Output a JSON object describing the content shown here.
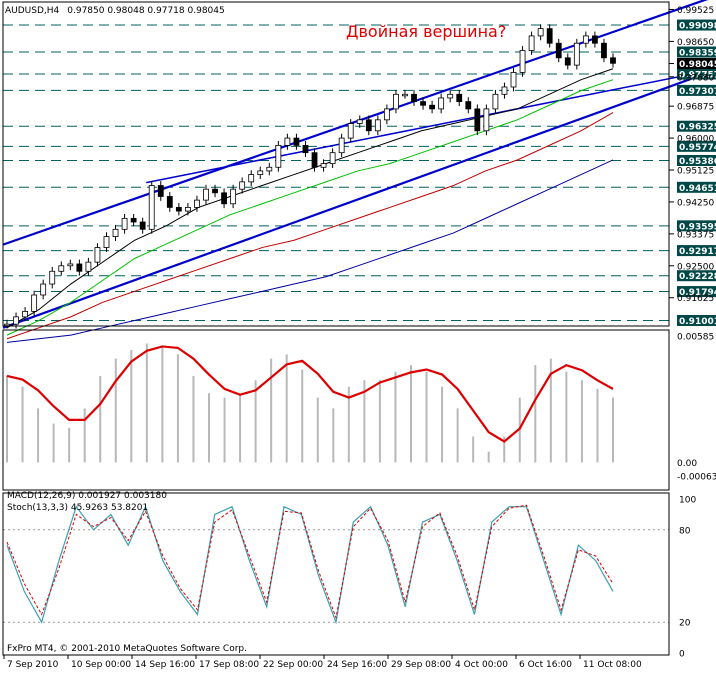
{
  "header": {
    "symbol": "AUDUSD,H4",
    "ohlc": "0.97850 0.98048 0.97718 0.98045"
  },
  "annotation": "Двойная вершина?",
  "copyright": "FxPro MT4, © 2001-2010 MetaQuotes Software Corp.",
  "price_axis": {
    "ticks": [
      "0.99525",
      "0.98650",
      "0.98045",
      "0.97680",
      "0.96875",
      "0.96000",
      "0.95125",
      "0.94250",
      "0.93375",
      "0.92500",
      "0.91625"
    ],
    "levels": [
      {
        "label": "0.99098",
        "value": 0.99098
      },
      {
        "label": "0.98359",
        "value": 0.98359
      },
      {
        "label": "0.97757",
        "value": 0.97757
      },
      {
        "label": "0.97307",
        "value": 0.97307
      },
      {
        "label": "0.96325",
        "value": 0.96325
      },
      {
        "label": "0.95774",
        "value": 0.95774
      },
      {
        "label": "0.95386",
        "value": 0.95386
      },
      {
        "label": "0.94651",
        "value": 0.94651
      },
      {
        "label": "0.93595",
        "value": 0.93595
      },
      {
        "label": "0.92917",
        "value": 0.92917
      },
      {
        "label": "0.92228",
        "value": 0.92228
      },
      {
        "label": "0.91794",
        "value": 0.91794
      },
      {
        "label": "0.91001",
        "value": 0.91001
      }
    ],
    "current_price": "0.98045"
  },
  "macd": {
    "label": "MACD(12,26,9) 0.001927 0.003180",
    "ticks": [
      "0.00585",
      "0.00",
      "-0.00063"
    ]
  },
  "stoch": {
    "label": "Stoch(13,3,3) 45.9263 53.8201",
    "ticks": [
      "100",
      "80",
      "20",
      "0"
    ]
  },
  "time_axis": {
    "labels": [
      "7 Sep 2010",
      "10 Sep 00:00",
      "14 Sep 16:00",
      "17 Sep 08:00",
      "22 Sep 00:00",
      "24 Sep 16:00",
      "29 Sep 08:00",
      "4 Oct 00:00",
      "6 Oct 16:00",
      "11 Oct 08:00"
    ]
  },
  "chart_data": {
    "type": "line",
    "title": "AUDUSD,H4",
    "ylim": [
      0.9085,
      0.9962
    ],
    "price_series": [
      0.909,
      0.911,
      0.9125,
      0.917,
      0.92,
      0.9235,
      0.925,
      0.9255,
      0.9235,
      0.926,
      0.93,
      0.933,
      0.935,
      0.938,
      0.937,
      0.935,
      0.947,
      0.944,
      0.941,
      0.94,
      0.941,
      0.943,
      0.946,
      0.945,
      0.942,
      0.946,
      0.948,
      0.95,
      0.951,
      0.952,
      0.958,
      0.96,
      0.958,
      0.956,
      0.952,
      0.953,
      0.956,
      0.96,
      0.964,
      0.965,
      0.962,
      0.965,
      0.968,
      0.972,
      0.972,
      0.97,
      0.969,
      0.968,
      0.971,
      0.972,
      0.97,
      0.968,
      0.962,
      0.968,
      0.972,
      0.974,
      0.978,
      0.984,
      0.988,
      0.99,
      0.986,
      0.982,
      0.98,
      0.986,
      0.988,
      0.986,
      0.982,
      0.9805
    ],
    "moving_averages": [
      {
        "color": "#000000",
        "values": [
          0.908,
          0.913,
          0.92,
          0.926,
          0.932,
          0.936,
          0.941,
          0.944,
          0.947,
          0.95,
          0.953,
          0.956,
          0.959,
          0.962,
          0.964,
          0.966,
          0.968,
          0.972,
          0.976,
          0.979
        ]
      },
      {
        "color": "#00c000",
        "values": [
          0.906,
          0.91,
          0.915,
          0.921,
          0.927,
          0.931,
          0.935,
          0.939,
          0.942,
          0.945,
          0.948,
          0.951,
          0.953,
          0.956,
          0.959,
          0.962,
          0.965,
          0.969,
          0.973,
          0.976
        ]
      },
      {
        "color": "#c00000",
        "values": [
          0.905,
          0.908,
          0.911,
          0.915,
          0.918,
          0.921,
          0.924,
          0.927,
          0.93,
          0.932,
          0.935,
          0.938,
          0.941,
          0.944,
          0.947,
          0.951,
          0.954,
          0.958,
          0.962,
          0.967
        ]
      },
      {
        "color": "#0000a0",
        "values": [
          0.904,
          0.905,
          0.906,
          0.908,
          0.91,
          0.912,
          0.914,
          0.916,
          0.918,
          0.92,
          0.922,
          0.925,
          0.928,
          0.931,
          0.934,
          0.938,
          0.942,
          0.946,
          0.95,
          0.954
        ]
      }
    ],
    "channel": {
      "upper": [
        [
          0,
          0.9308
        ],
        [
          1,
          0.9992
        ]
      ],
      "lower": [
        [
          0,
          0.908
        ],
        [
          1,
          0.979
        ]
      ],
      "upper_mid": [
        [
          0.2,
          0.9478
        ],
        [
          1,
          0.979
        ]
      ]
    },
    "macd_series": [
      0.004,
      0.0035,
      0.0025,
      0.0018,
      0.0016,
      0.0025,
      0.004,
      0.0048,
      0.0052,
      0.0055,
      0.0054,
      0.005,
      0.004,
      0.0032,
      0.003,
      0.0032,
      0.0038,
      0.0048,
      0.005,
      0.0043,
      0.003,
      0.0025,
      0.0035,
      0.0038,
      0.0038,
      0.0042,
      0.0045,
      0.0042,
      0.0035,
      0.0025,
      0.0012,
      0.0005,
      0.0012,
      0.003,
      0.0045,
      0.0048,
      0.0042,
      0.0038,
      0.0034,
      0.003
    ],
    "macd_range": [
      -0.00063,
      0.00585
    ],
    "stoch_main": [
      70,
      40,
      20,
      60,
      95,
      80,
      90,
      70,
      95,
      60,
      40,
      25,
      90,
      95,
      60,
      30,
      95,
      90,
      50,
      20,
      85,
      95,
      70,
      30,
      85,
      90,
      60,
      25,
      85,
      95,
      95,
      60,
      25,
      70,
      60,
      40
    ],
    "stoch_signal": [
      72,
      45,
      25,
      55,
      90,
      82,
      88,
      73,
      92,
      63,
      42,
      28,
      85,
      93,
      63,
      33,
      92,
      91,
      53,
      23,
      82,
      94,
      73,
      33,
      82,
      91,
      63,
      28,
      82,
      94,
      96,
      63,
      28,
      67,
      63,
      45
    ],
    "stoch_range": [
      0,
      100
    ]
  }
}
